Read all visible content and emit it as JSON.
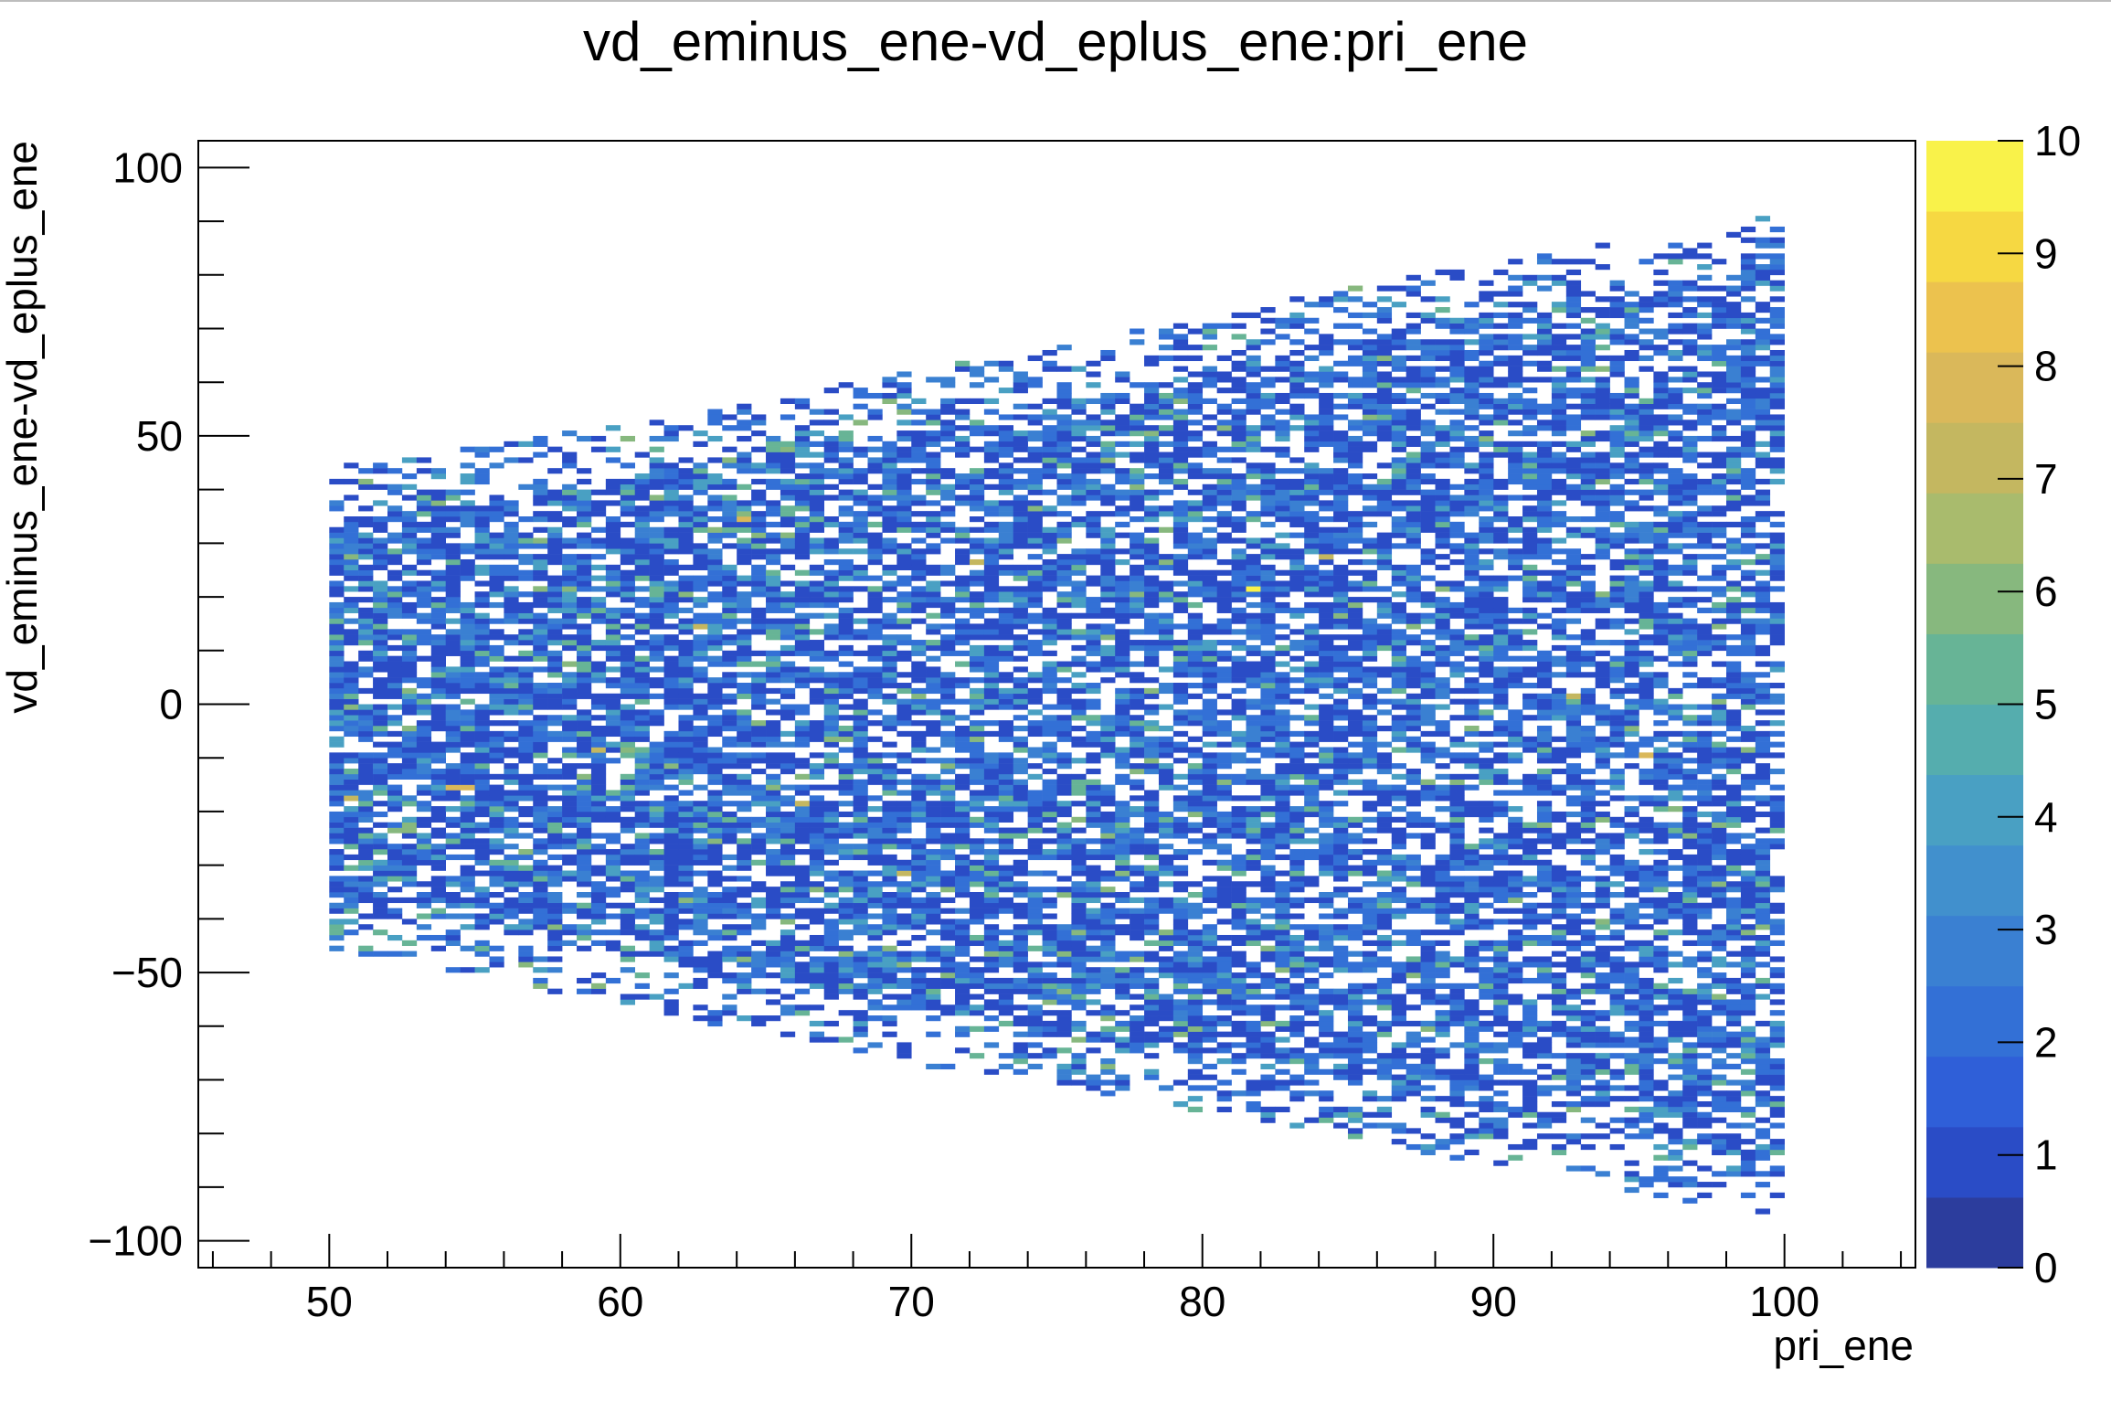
{
  "chart_data": {
    "type": "heatmap",
    "title": "vd_eminus_ene-vd_eplus_ene:pri_ene",
    "xlabel": "pri_ene",
    "ylabel": "vd_eminus_ene-vd_eplus_ene",
    "xlim": [
      45.5,
      104.5
    ],
    "ylim": [
      -105,
      105
    ],
    "x_ticks": [
      50,
      60,
      70,
      80,
      90,
      100
    ],
    "y_ticks": [
      -100,
      -50,
      0,
      50,
      100
    ],
    "x_tick_labels": [
      "50",
      "60",
      "70",
      "80",
      "90",
      "100"
    ],
    "y_tick_labels": [
      "−100",
      "−50",
      "0",
      "50",
      "100"
    ],
    "z_range": [
      0,
      10
    ],
    "z_ticks": [
      0,
      1,
      2,
      3,
      4,
      5,
      6,
      7,
      8,
      9,
      10
    ],
    "z_tick_labels": [
      "0",
      "1",
      "2",
      "3",
      "4",
      "5",
      "6",
      "7",
      "8",
      "9",
      "10"
    ],
    "grid": false,
    "bins": {
      "x_min": 50,
      "x_max": 100,
      "x_bins": 100,
      "y_min": -100,
      "y_max": 100,
      "y_bins": 200
    },
    "occupied_region": {
      "upper_edge": [
        [
          50,
          40
        ],
        [
          60,
          48
        ],
        [
          70,
          58
        ],
        [
          80,
          68
        ],
        [
          90,
          79
        ],
        [
          100,
          88
        ]
      ],
      "lower_edge": [
        [
          50,
          -42
        ],
        [
          60,
          -52
        ],
        [
          70,
          -63
        ],
        [
          80,
          -72
        ],
        [
          90,
          -82
        ],
        [
          100,
          -92
        ]
      ]
    },
    "typical_counts": {
      "mode": 1,
      "mean": 2.3,
      "max": 10
    },
    "hot_bins": [
      {
        "x": 54.25,
        "y": -15.5,
        "z": 8
      },
      {
        "x": 54.75,
        "y": -15.5,
        "z": 8
      },
      {
        "x": 50.75,
        "y": -17.5,
        "z": 7
      },
      {
        "x": 64.25,
        "y": 34.5,
        "z": 8
      },
      {
        "x": 81.75,
        "y": 21.5,
        "z": 10
      },
      {
        "x": 95.25,
        "y": -9.5,
        "z": 8
      },
      {
        "x": 72.25,
        "y": 26.5,
        "z": 7
      },
      {
        "x": 59.25,
        "y": -8.5,
        "z": 7
      },
      {
        "x": 62.75,
        "y": 14.5,
        "z": 7
      },
      {
        "x": 84.25,
        "y": 27.5,
        "z": 7
      },
      {
        "x": 92.75,
        "y": 1.5,
        "z": 7
      },
      {
        "x": 78.75,
        "y": -42.5,
        "z": 6
      },
      {
        "x": 66.25,
        "y": -18.5,
        "z": 7
      },
      {
        "x": 69.75,
        "y": -31.5,
        "z": 7
      }
    ],
    "colormap": [
      "#2c3d9d",
      "#2a4cc6",
      "#2f5fd8",
      "#3370d6",
      "#3a80d2",
      "#4190cd",
      "#49a0c3",
      "#55adae",
      "#67b496",
      "#87b87e",
      "#a9bb6d",
      "#c4b760",
      "#dab85a",
      "#ecc24e",
      "#f6d842",
      "#f9f24a"
    ]
  }
}
